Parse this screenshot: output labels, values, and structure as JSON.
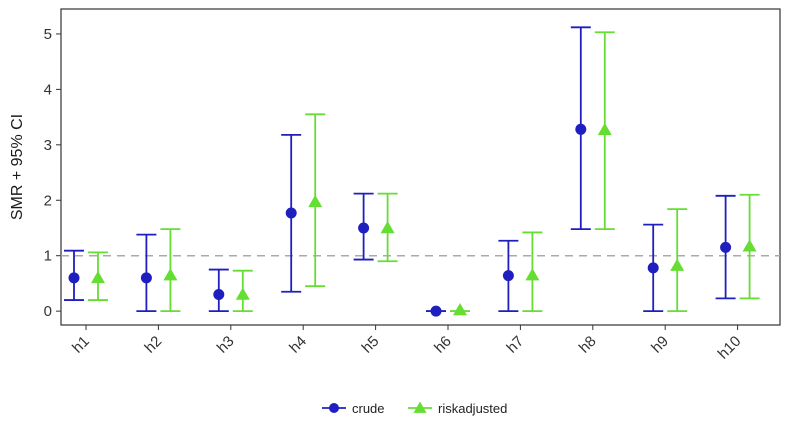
{
  "chart_data": {
    "type": "scatter",
    "title": "",
    "xlabel": "",
    "ylabel": "SMR + 95% CI",
    "categories": [
      "h1",
      "h2",
      "h3",
      "h4",
      "h5",
      "h6",
      "h7",
      "h8",
      "h9",
      "h10"
    ],
    "ylim": [
      -0.25,
      5.45
    ],
    "yticks": [
      0,
      1,
      2,
      3,
      4,
      5
    ],
    "reference_line": 1,
    "grid": false,
    "legend_position": "bottom",
    "series": [
      {
        "name": "crude",
        "marker": "circle",
        "color": "#1f1fbf",
        "values": [
          0.6,
          0.6,
          0.3,
          1.77,
          1.5,
          0.0,
          0.64,
          3.28,
          0.78,
          1.15
        ],
        "lower": [
          0.2,
          0.0,
          0.0,
          0.35,
          0.93,
          0.0,
          0.0,
          1.48,
          0.0,
          0.23
        ],
        "upper": [
          1.09,
          1.38,
          0.75,
          3.18,
          2.12,
          0.0,
          1.27,
          5.12,
          1.56,
          2.08
        ]
      },
      {
        "name": "riskadjusted",
        "marker": "triangle",
        "color": "#66dd33",
        "values": [
          0.6,
          0.65,
          0.3,
          1.97,
          1.5,
          0.02,
          0.65,
          3.27,
          0.82,
          1.17
        ],
        "lower": [
          0.2,
          0.0,
          0.0,
          0.45,
          0.9,
          0.0,
          0.0,
          1.48,
          0.0,
          0.23
        ],
        "upper": [
          1.06,
          1.48,
          0.73,
          3.55,
          2.12,
          0.0,
          1.42,
          5.03,
          1.84,
          2.1
        ]
      }
    ]
  }
}
